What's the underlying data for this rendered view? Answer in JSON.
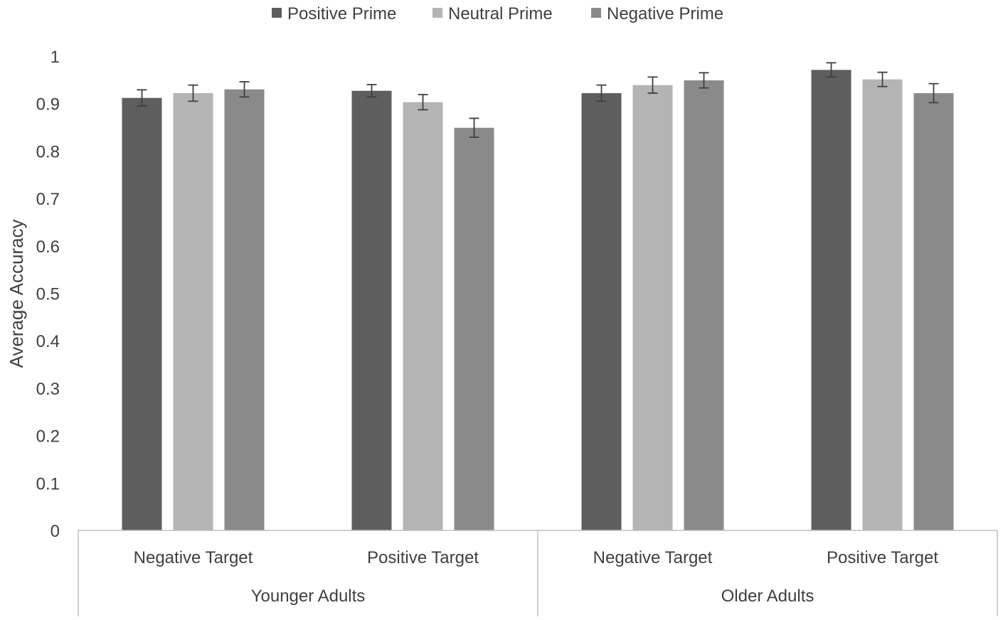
{
  "chart_data": {
    "type": "bar",
    "title": "",
    "xlabel": "",
    "ylabel": "Average Accuracy",
    "ylim": [
      0,
      1
    ],
    "yticks": [
      "0",
      "0.1",
      "0.2",
      "0.3",
      "0.4",
      "0.5",
      "0.6",
      "0.7",
      "0.8",
      "0.9",
      "1"
    ],
    "grid": false,
    "legend_position": "top",
    "groups": [
      {
        "label": "Younger Adults",
        "categories": [
          "Negative Target",
          "Positive Target"
        ]
      },
      {
        "label": "Older Adults",
        "categories": [
          "Negative Target",
          "Positive Target"
        ]
      }
    ],
    "categories": [
      "Younger Adults / Negative Target",
      "Younger Adults / Positive Target",
      "Older Adults / Negative Target",
      "Older Adults / Positive Target"
    ],
    "series": [
      {
        "name": "Positive Prime",
        "color": "#5e5e5e",
        "values": [
          0.912,
          0.927,
          0.922,
          0.971
        ],
        "errors": [
          0.017,
          0.013,
          0.017,
          0.015
        ]
      },
      {
        "name": "Neutral Prime",
        "color": "#b4b4b4",
        "values": [
          0.922,
          0.903,
          0.939,
          0.951
        ],
        "errors": [
          0.017,
          0.016,
          0.017,
          0.015
        ]
      },
      {
        "name": "Negative Prime",
        "color": "#8a8a8a",
        "values": [
          0.93,
          0.849,
          0.949,
          0.922
        ],
        "errors": [
          0.016,
          0.02,
          0.016,
          0.02
        ]
      }
    ]
  }
}
